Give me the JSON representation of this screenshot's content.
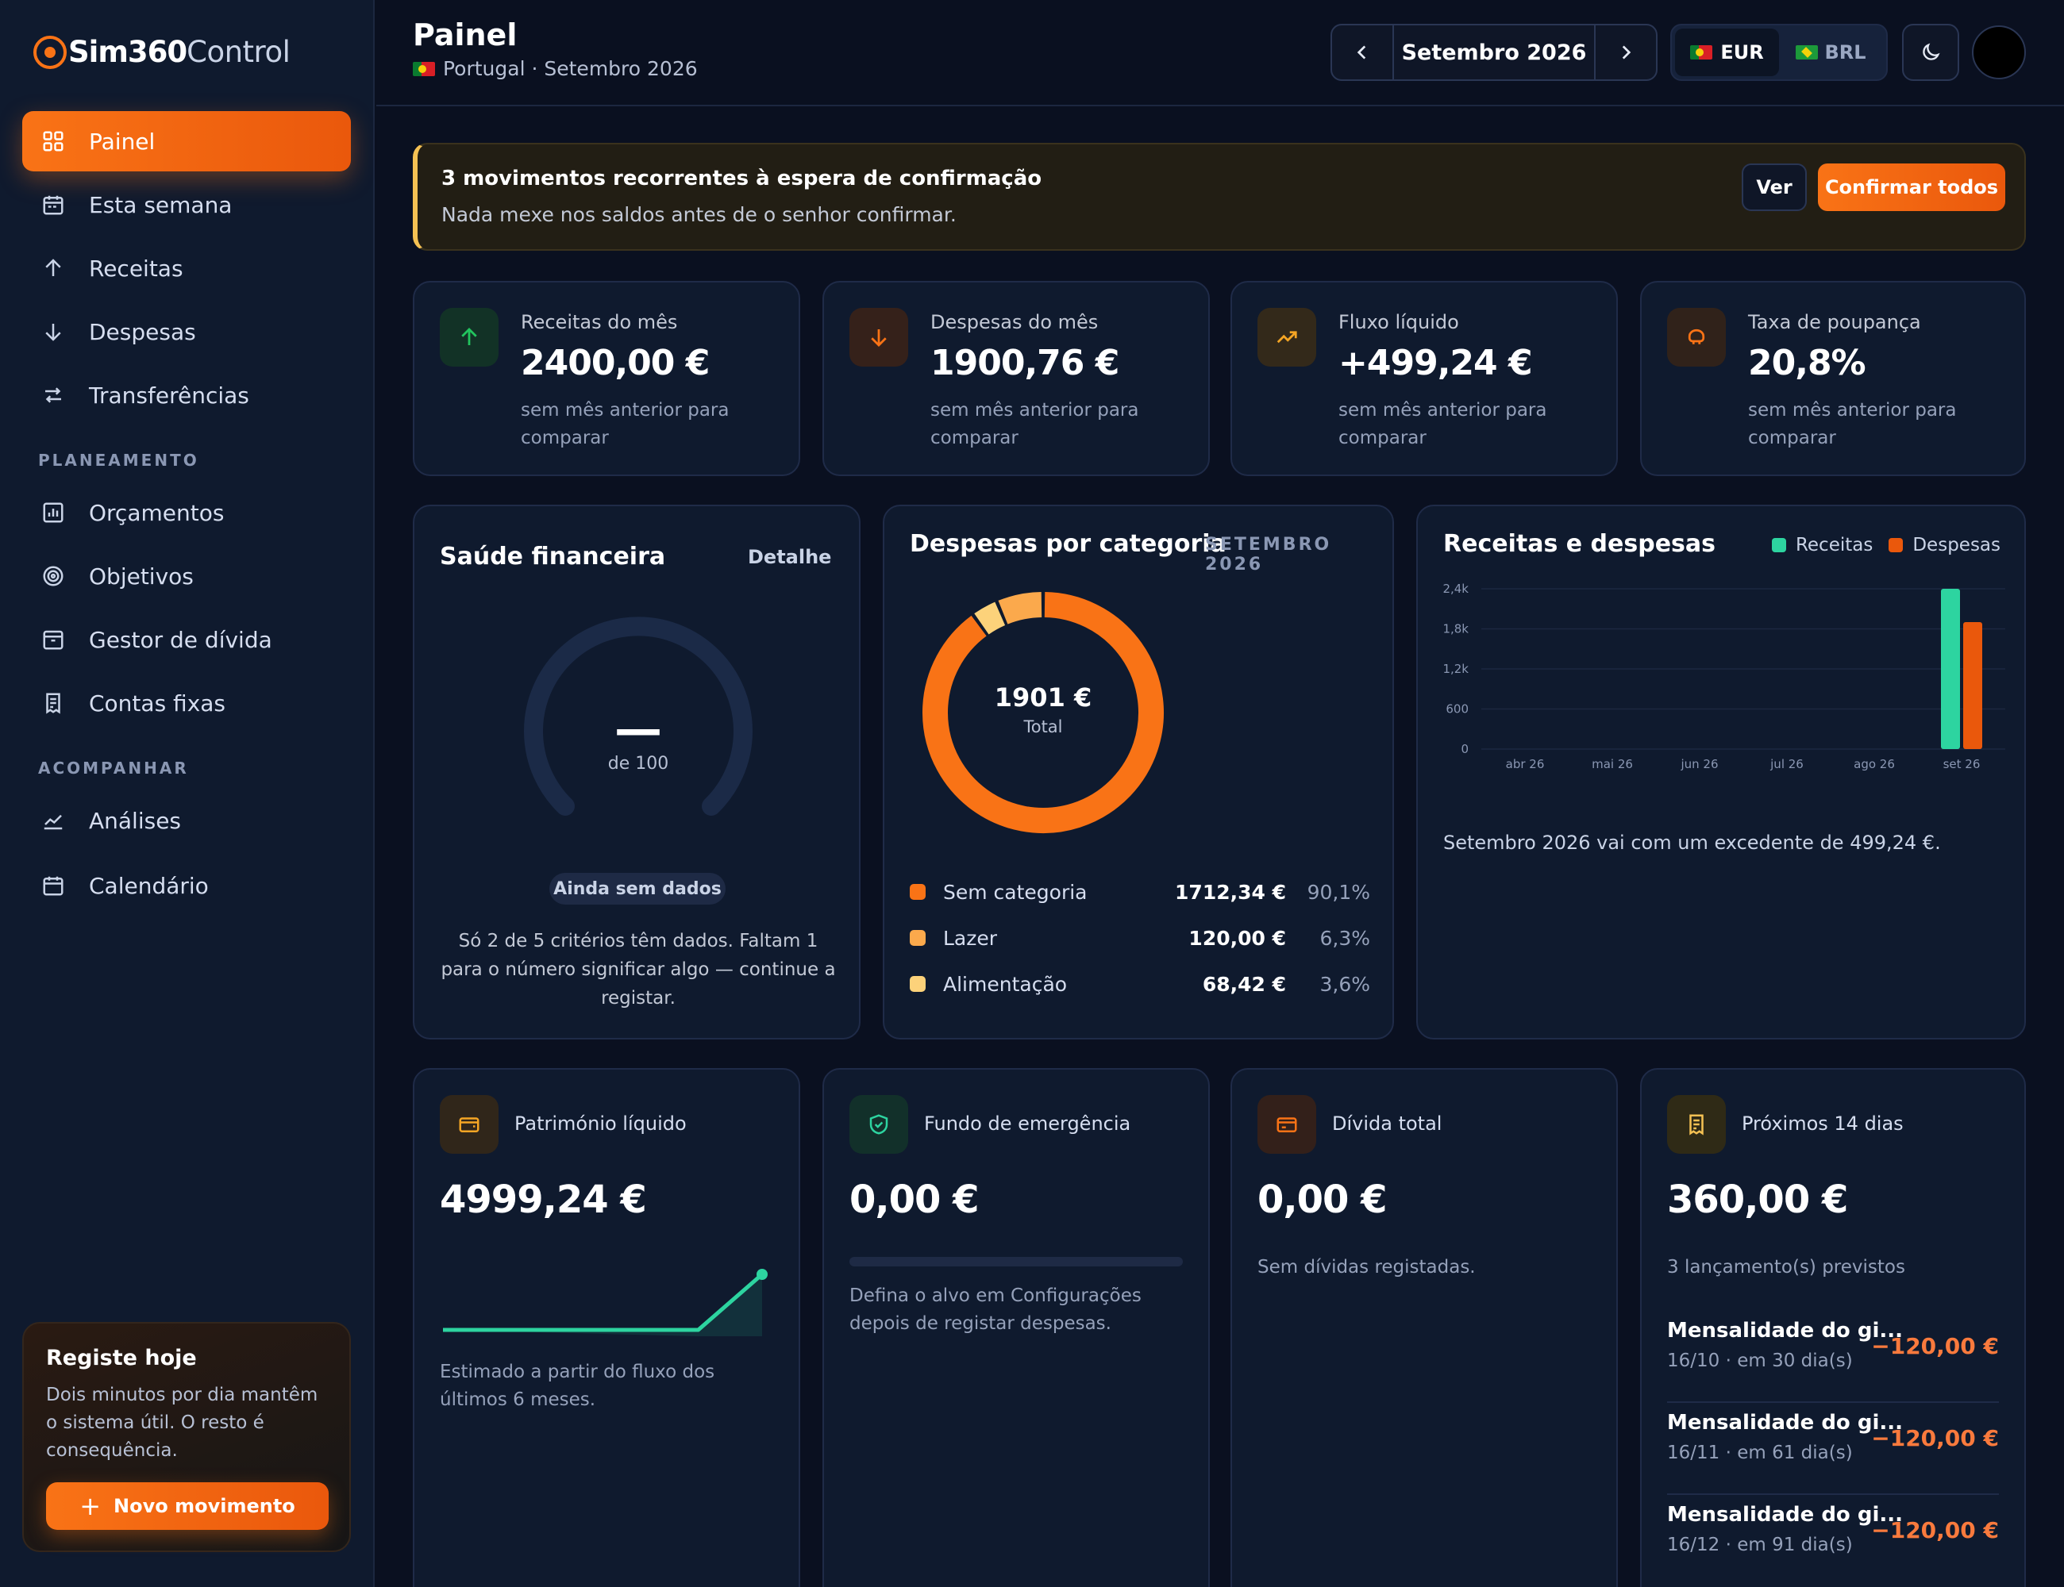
{
  "app": {
    "logo_bold": "Sim360",
    "logo_light": "Control"
  },
  "sidebar": {
    "items": [
      {
        "label": "Painel",
        "icon": "grid-icon",
        "active": true
      },
      {
        "label": "Esta semana",
        "icon": "calendar-week-icon"
      },
      {
        "label": "Receitas",
        "icon": "arrow-up-icon"
      },
      {
        "label": "Despesas",
        "icon": "arrow-down-icon"
      },
      {
        "label": "Transferências",
        "icon": "transfer-icon"
      }
    ],
    "section_planning": "PLANEAMENTO",
    "planning_items": [
      {
        "label": "Orçamentos",
        "icon": "bar-chart-icon"
      },
      {
        "label": "Objetivos",
        "icon": "target-icon"
      },
      {
        "label": "Gestor de dívida",
        "icon": "archive-icon"
      },
      {
        "label": "Contas fixas",
        "icon": "receipt-icon"
      }
    ],
    "section_follow": "ACOMPANHAR",
    "follow_items": [
      {
        "label": "Análises",
        "icon": "trend-icon"
      },
      {
        "label": "Calendário",
        "icon": "calendar-icon"
      }
    ],
    "cta": {
      "title": "Registe hoje",
      "text": "Dois minutos por dia mantêm o sistema útil. O resto é consequência.",
      "button": "Novo movimento"
    }
  },
  "header": {
    "title": "Painel",
    "subtitle": "Portugal · Setembro 2026",
    "month": "Setembro 2026",
    "currencies": [
      {
        "code": "EUR",
        "active": true
      },
      {
        "code": "BRL",
        "active": false
      }
    ]
  },
  "banner": {
    "title": "3 movimentos recorrentes à espera de confirmação",
    "subtitle": "Nada mexe nos saldos antes de o senhor confirmar.",
    "view_label": "Ver",
    "confirm_label": "Confirmar todos"
  },
  "kpis": [
    {
      "label": "Receitas do mês",
      "value": "2400,00 €",
      "note": "sem mês anterior para comparar",
      "icon": "arrow-up-icon",
      "color": "#22c55e"
    },
    {
      "label": "Despesas do mês",
      "value": "1900,76 €",
      "note": "sem mês anterior para comparar",
      "icon": "arrow-down-icon",
      "color": "#f97316"
    },
    {
      "label": "Fluxo líquido",
      "value": "+499,24 €",
      "note": "sem mês anterior para comparar",
      "icon": "trend-up-icon",
      "color": "#f5a524"
    },
    {
      "label": "Taxa de poupança",
      "value": "20,8%",
      "note": "sem mês anterior para comparar",
      "icon": "piggy-bank-icon",
      "color": "#f97316"
    }
  ],
  "health": {
    "title": "Saúde financeira",
    "detail_label": "Detalhe",
    "score": "—",
    "of": "de 100",
    "status": "Ainda sem dados",
    "text": "Só 2 de 5 critérios têm dados. Faltam 1 para o número significar algo — continue a registar."
  },
  "categories": {
    "title": "Despesas por categoria",
    "period": "SETEMBRO 2026",
    "total": "1901 €",
    "total_label": "Total",
    "items": [
      {
        "name": "Sem categoria",
        "value": "1712,34 €",
        "pct": "90,1%",
        "color": "#f97316"
      },
      {
        "name": "Lazer",
        "value": "120,00 €",
        "pct": "6,3%",
        "color": "#fba94c"
      },
      {
        "name": "Alimentação",
        "value": "68,42 €",
        "pct": "3,6%",
        "color": "#fcd27a"
      }
    ]
  },
  "chart_data": {
    "type": "bar",
    "title": "Receitas e despesas",
    "categories": [
      "abr 26",
      "mai 26",
      "jun 26",
      "jul 26",
      "ago 26",
      "set 26"
    ],
    "series": [
      {
        "name": "Receitas",
        "values": [
          0,
          0,
          0,
          0,
          0,
          2400
        ],
        "color": "#2dd4a0"
      },
      {
        "name": "Despesas",
        "values": [
          0,
          0,
          0,
          0,
          0,
          1900.76
        ],
        "color": "#ea580c"
      }
    ],
    "yticks": [
      "0",
      "600",
      "1,2k",
      "1,8k",
      "2,4k"
    ],
    "ylim": [
      0,
      2400
    ],
    "grid": true,
    "legend": "top-right",
    "summary": "Setembro 2026 vai com um excedente de 499,24 €."
  },
  "net_worth": {
    "label": "Património líquido",
    "value": "4999,24 €",
    "note": "Estimado a partir do fluxo dos últimos 6 meses.",
    "trend": [
      0,
      0,
      0,
      0,
      0,
      4999.24
    ]
  },
  "emergency": {
    "label": "Fundo de emergência",
    "value": "0,00 €",
    "progress": 0,
    "note": "Defina o alvo em Configurações depois de registar despesas."
  },
  "debt": {
    "label": "Dívida total",
    "value": "0,00 €",
    "note": "Sem dívidas registadas."
  },
  "upcoming": {
    "label": "Próximos 14 dias",
    "value": "360,00 €",
    "note": "3 lançamento(s) previstos",
    "items": [
      {
        "name": "Mensalidade do gi...",
        "date": "16/10 · em 30 dia(s)",
        "amount": "−120,00 €"
      },
      {
        "name": "Mensalidade do gi...",
        "date": "16/11 · em 61 dia(s)",
        "amount": "−120,00 €"
      },
      {
        "name": "Mensalidade do gi...",
        "date": "16/12 · em 91 dia(s)",
        "amount": "−120,00 €"
      }
    ]
  }
}
